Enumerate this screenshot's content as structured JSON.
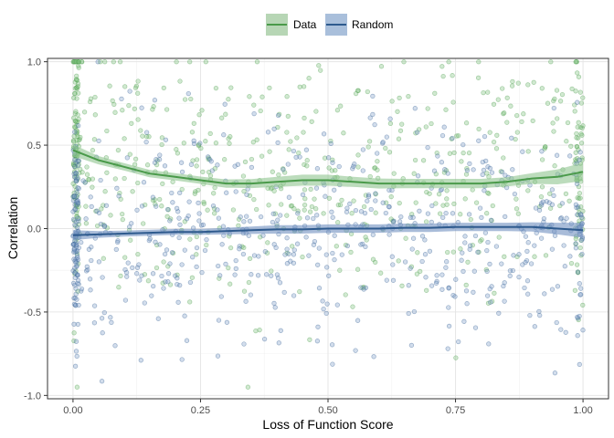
{
  "chart_data": {
    "type": "scatter",
    "xlabel": "Loss of Function Score",
    "ylabel": "Correlation",
    "xlim": [
      -0.05,
      1.05
    ],
    "ylim": [
      -1.02,
      1.02
    ],
    "x_ticks": [
      0.0,
      0.25,
      0.5,
      0.75,
      1.0
    ],
    "x_tick_labels": [
      "0.00",
      "0.25",
      "0.50",
      "0.75",
      "1.00"
    ],
    "y_ticks": [
      -1.0,
      -0.5,
      0.0,
      0.5,
      1.0
    ],
    "y_tick_labels": [
      "-1.0",
      "-0.5",
      "0.0",
      "0.5",
      "1.0"
    ],
    "grid": true,
    "legend_position": "top",
    "points_per_series_approx": 700,
    "series": [
      {
        "name": "Data",
        "color": "#4a9a4a",
        "point_color": "#7bbf7b",
        "band_color": "#8fc48f",
        "smooth": {
          "x": [
            0.0,
            0.05,
            0.1,
            0.15,
            0.2,
            0.25,
            0.3,
            0.35,
            0.4,
            0.45,
            0.5,
            0.55,
            0.6,
            0.65,
            0.7,
            0.75,
            0.8,
            0.85,
            0.9,
            0.95,
            1.0
          ],
          "y": [
            0.47,
            0.41,
            0.37,
            0.33,
            0.31,
            0.29,
            0.27,
            0.27,
            0.28,
            0.29,
            0.29,
            0.28,
            0.27,
            0.27,
            0.27,
            0.27,
            0.27,
            0.28,
            0.3,
            0.31,
            0.34
          ],
          "band": [
            0.035,
            0.025,
            0.022,
            0.022,
            0.022,
            0.022,
            0.025,
            0.027,
            0.03,
            0.033,
            0.033,
            0.03,
            0.03,
            0.028,
            0.028,
            0.028,
            0.028,
            0.028,
            0.032,
            0.045,
            0.055
          ]
        }
      },
      {
        "name": "Random",
        "color": "#2e5a8e",
        "point_color": "#7d9fc9",
        "band_color": "#6f8fbf",
        "smooth": {
          "x": [
            0.0,
            0.05,
            0.1,
            0.15,
            0.2,
            0.25,
            0.3,
            0.35,
            0.4,
            0.45,
            0.5,
            0.55,
            0.6,
            0.65,
            0.7,
            0.75,
            0.8,
            0.85,
            0.9,
            0.95,
            1.0
          ],
          "y": [
            -0.04,
            -0.035,
            -0.03,
            -0.025,
            -0.02,
            -0.02,
            -0.015,
            -0.01,
            -0.005,
            -0.005,
            0.0,
            0.0,
            0.0,
            0.005,
            0.005,
            0.01,
            0.01,
            0.01,
            0.01,
            0.0,
            -0.01
          ],
          "band": [
            0.03,
            0.02,
            0.018,
            0.018,
            0.018,
            0.018,
            0.02,
            0.022,
            0.025,
            0.025,
            0.025,
            0.025,
            0.025,
            0.025,
            0.025,
            0.025,
            0.025,
            0.025,
            0.028,
            0.035,
            0.045
          ]
        }
      }
    ]
  }
}
